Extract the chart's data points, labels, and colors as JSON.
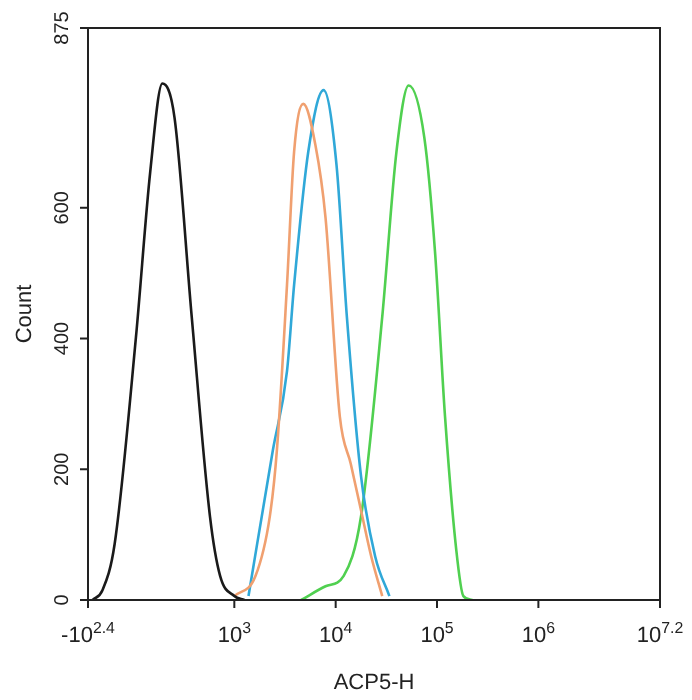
{
  "chart_data": {
    "type": "line",
    "xlabel": "ACP5-H",
    "ylabel": "Count",
    "log": "x",
    "annotations": [
      "-10$^{2.4}$"
    ],
    "xlim": [
      36,
      15848932
    ],
    "xticks": [
      {
        "value": 1000,
        "label": "10$^{3}$"
      },
      {
        "value": 10000,
        "label": "10$^{4}$"
      },
      {
        "value": 100000,
        "label": "10$^{5}$"
      },
      {
        "value": 1000000,
        "label": "10$^{6}$"
      },
      {
        "value": 15848932,
        "label": "10$^{7.2}$"
      }
    ],
    "ylim": [
      0,
      875
    ],
    "yticks": [
      0,
      200,
      400,
      600,
      875
    ],
    "grid": false,
    "legend": false,
    "marker": "none",
    "line_style": "solid",
    "series": [
      {
        "color": "#1a1a1a",
        "x": [
          40,
          50,
          66,
          107,
          148,
          195,
          257,
          380,
          575,
          724,
          1000,
          1260
        ],
        "values": [
          0,
          15,
          86,
          402,
          655,
          790,
          738,
          433,
          128,
          37,
          6,
          0
        ]
      },
      {
        "color": "#f0a070",
        "x": [
          1000,
          1620,
          2240,
          2630,
          3310,
          3890,
          4790,
          6310,
          7940,
          11000,
          14100,
          17800,
          22400,
          28800
        ],
        "values": [
          6,
          37,
          128,
          229,
          482,
          686,
          759,
          696,
          585,
          280,
          208,
          137,
          67,
          6
        ]
      },
      {
        "color": "#30a8d8",
        "x": [
          1380,
          2400,
          3310,
          3890,
          5370,
          7590,
          10200,
          12900,
          17800,
          24500,
          33900
        ],
        "values": [
          6,
          229,
          350,
          482,
          686,
          780,
          665,
          433,
          189,
          67,
          6
        ]
      },
      {
        "color": "#50d050",
        "x": [
          4570,
          7940,
          12000,
          17800,
          28800,
          39800,
          52500,
          75000,
          95500,
          120000,
          155000,
          182000,
          224000
        ],
        "values": [
          0,
          21,
          37,
          128,
          433,
          686,
          787,
          707,
          533,
          280,
          76,
          6,
          0
        ]
      }
    ]
  }
}
